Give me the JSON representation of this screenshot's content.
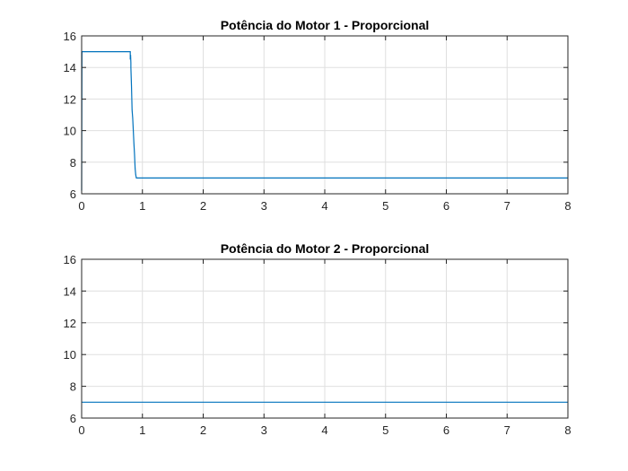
{
  "chart_data": [
    {
      "type": "line",
      "title": "Potência do Motor 1 - Proporcional",
      "xlim": [
        0,
        8
      ],
      "ylim": [
        6,
        16
      ],
      "xticks": [
        0,
        1,
        2,
        3,
        4,
        5,
        6,
        7,
        8
      ],
      "yticks": [
        6,
        8,
        10,
        12,
        14,
        16
      ],
      "grid": true,
      "color": "#0072BD",
      "series": [
        {
          "x": [
            0,
            0.005,
            0.8,
            0.8,
            0.805,
            0.81,
            0.81,
            0.82,
            0.83,
            0.84,
            0.85,
            0.86,
            0.87,
            0.88,
            0.89,
            0.9,
            0.91,
            1.0,
            8.0
          ],
          "y": [
            6.2,
            15.0,
            15.0,
            14.5,
            14.8,
            14.3,
            14.0,
            12.8,
            11.3,
            10.8,
            10.0,
            9.2,
            8.5,
            7.6,
            7.2,
            7.0,
            7.0,
            7.0,
            7.0
          ]
        }
      ]
    },
    {
      "type": "line",
      "title": "Potência do Motor 2 - Proporcional",
      "xlim": [
        0,
        8
      ],
      "ylim": [
        6,
        16
      ],
      "xticks": [
        0,
        1,
        2,
        3,
        4,
        5,
        6,
        7,
        8
      ],
      "yticks": [
        6,
        8,
        10,
        12,
        14,
        16
      ],
      "grid": true,
      "color": "#0072BD",
      "series": [
        {
          "x": [
            0,
            8
          ],
          "y": [
            7.0,
            7.0
          ]
        }
      ]
    }
  ]
}
